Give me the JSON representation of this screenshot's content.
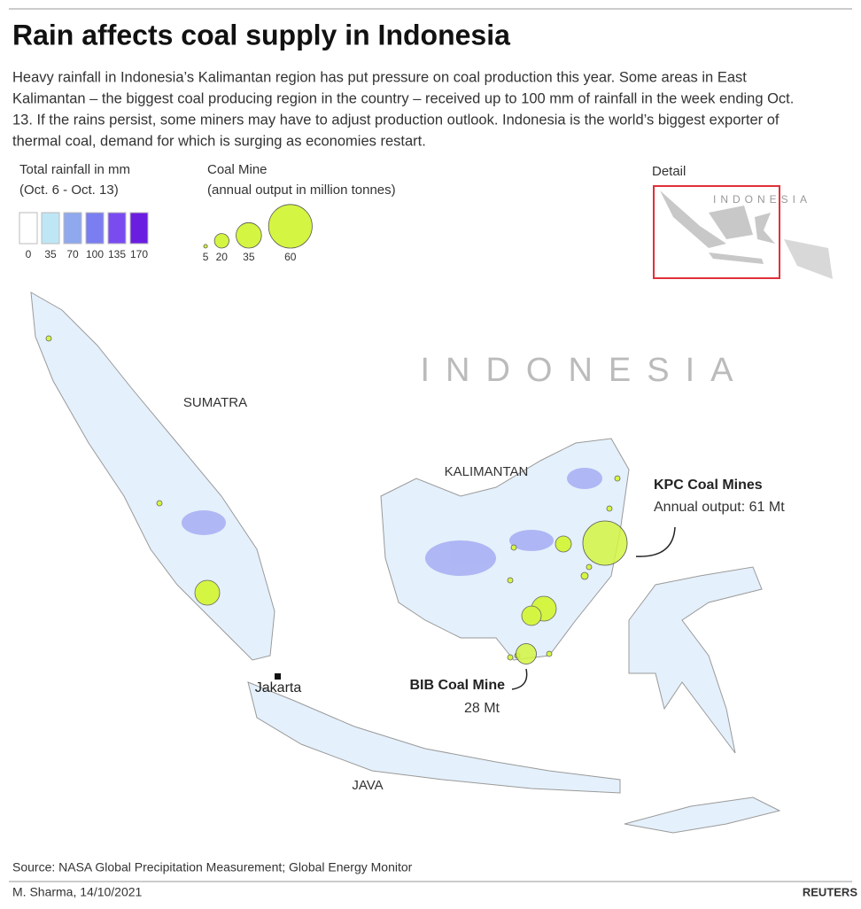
{
  "header": {
    "title": "Rain affects coal supply in Indonesia",
    "description": [
      "Heavy rainfall in Indonesia’s Kalimantan region has put pressure on coal production this year. Some areas in East",
      "Kalimantan – the biggest coal producing region in the country – received up to 100 mm of rainfall in the week ending Oct.",
      "13. If the rains persist, some miners may have to adjust production outlook. Indonesia is the world’s biggest exporter of",
      "thermal coal, demand for which is surging as economies restart."
    ]
  },
  "legend": {
    "rainfall": {
      "title": [
        "Total rainfall in mm",
        "(Oct. 6 - Oct. 13)"
      ],
      "values": [
        0,
        35,
        70,
        100,
        135,
        170
      ],
      "colors": [
        "#ffffff",
        "#bfe6f5",
        "#8fa8ee",
        "#7a7ef0",
        "#7a4cf0",
        "#6a1ee0"
      ]
    },
    "coal_mine": {
      "title": [
        "Coal Mine",
        "(annual output in million tonnes)"
      ],
      "values": [
        5,
        20,
        35,
        60
      ],
      "color": "#d4f542"
    },
    "detail": {
      "title": "Detail",
      "label": "INDONESIA"
    }
  },
  "map": {
    "country": "INDONESIA",
    "regions": [
      "SUMATRA",
      "KALIMANTAN",
      "JAVA"
    ],
    "city": "Jakarta",
    "mines": [
      {
        "name": "KPC Coal Mines",
        "output": 61,
        "label": "Annual output: 61 Mt"
      },
      {
        "name": "BIB Coal Mine",
        "output": 28,
        "label": "28 Mt"
      }
    ]
  },
  "footer": {
    "source": "Source: NASA Global Precipitation Measurement; Global Energy Monitor",
    "credit": "M. Sharma,  14/10/2021",
    "brand": "REUTERS"
  }
}
